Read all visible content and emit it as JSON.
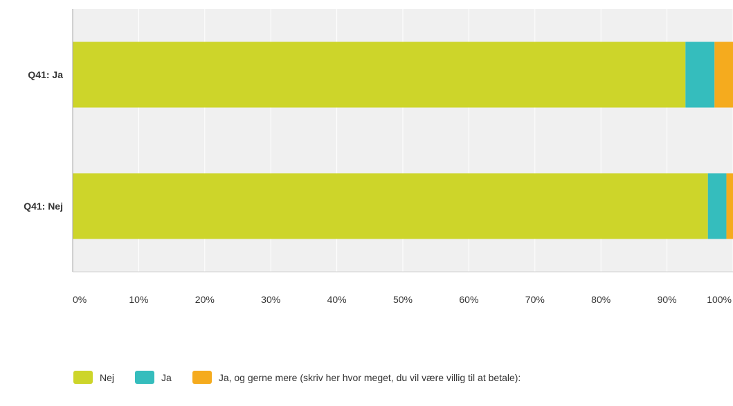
{
  "chart_data": {
    "type": "bar",
    "orientation": "horizontal",
    "stacked": true,
    "categories": [
      "Q41: Ja",
      "Q41: Nej"
    ],
    "series": [
      {
        "name": "Nej",
        "color": "#cdd52a",
        "values": [
          92.8,
          96.2
        ]
      },
      {
        "name": "Ja",
        "color": "#35bdbd",
        "values": [
          4.4,
          2.8
        ]
      },
      {
        "name": "Ja, og gerne mere (skriv her hvor meget, du vil være villig til at betale):",
        "color": "#f5ab1e",
        "values": [
          2.8,
          1.0
        ]
      }
    ],
    "xlim": [
      0,
      100
    ],
    "xticks": [
      "0%",
      "10%",
      "20%",
      "30%",
      "40%",
      "50%",
      "60%",
      "70%",
      "80%",
      "90%",
      "100%"
    ],
    "grid": true,
    "legend_position": "bottom-left"
  }
}
